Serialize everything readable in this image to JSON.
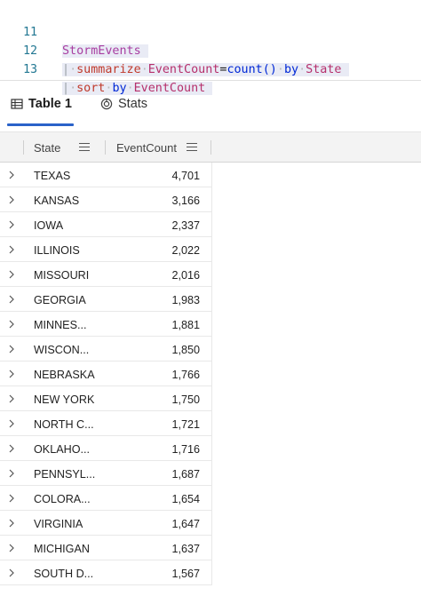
{
  "editor": {
    "lines": [
      {
        "number": "11",
        "tokens": {
          "table": "StormEvents"
        }
      },
      {
        "number": "12",
        "tokens": {
          "pipe": "|",
          "op": "summarize",
          "col": "EventCount",
          "eq": "=",
          "fn": "count()",
          "by": "by",
          "group": "State"
        }
      },
      {
        "number": "13",
        "tokens": {
          "pipe": "|",
          "op": "sort",
          "by": "by",
          "col": "EventCount"
        }
      }
    ]
  },
  "tabs": [
    {
      "label": "Table 1",
      "icon": "table-icon",
      "active": true
    },
    {
      "label": "Stats",
      "icon": "stats-icon",
      "active": false
    }
  ],
  "grid": {
    "columns": [
      "State",
      "EventCount"
    ],
    "rows": [
      {
        "state": "TEXAS",
        "count": "4,701"
      },
      {
        "state": "KANSAS",
        "count": "3,166"
      },
      {
        "state": "IOWA",
        "count": "2,337"
      },
      {
        "state": "ILLINOIS",
        "count": "2,022"
      },
      {
        "state": "MISSOURI",
        "count": "2,016"
      },
      {
        "state": "GEORGIA",
        "count": "1,983"
      },
      {
        "state": "MINNES...",
        "count": "1,881"
      },
      {
        "state": "WISCON...",
        "count": "1,850"
      },
      {
        "state": "NEBRASKA",
        "count": "1,766"
      },
      {
        "state": "NEW YORK",
        "count": "1,750"
      },
      {
        "state": "NORTH C...",
        "count": "1,721"
      },
      {
        "state": "OKLAHO...",
        "count": "1,716"
      },
      {
        "state": "PENNSYL...",
        "count": "1,687"
      },
      {
        "state": "COLORA...",
        "count": "1,654"
      },
      {
        "state": "VIRGINIA",
        "count": "1,647"
      },
      {
        "state": "MICHIGAN",
        "count": "1,637"
      },
      {
        "state": "SOUTH D...",
        "count": "1,567"
      }
    ]
  },
  "colors": {
    "accent": "#2a62c9",
    "keyword": "#c0392b",
    "function": "#0028d6",
    "identifier": "#b6306c",
    "line_number": "#237893"
  }
}
